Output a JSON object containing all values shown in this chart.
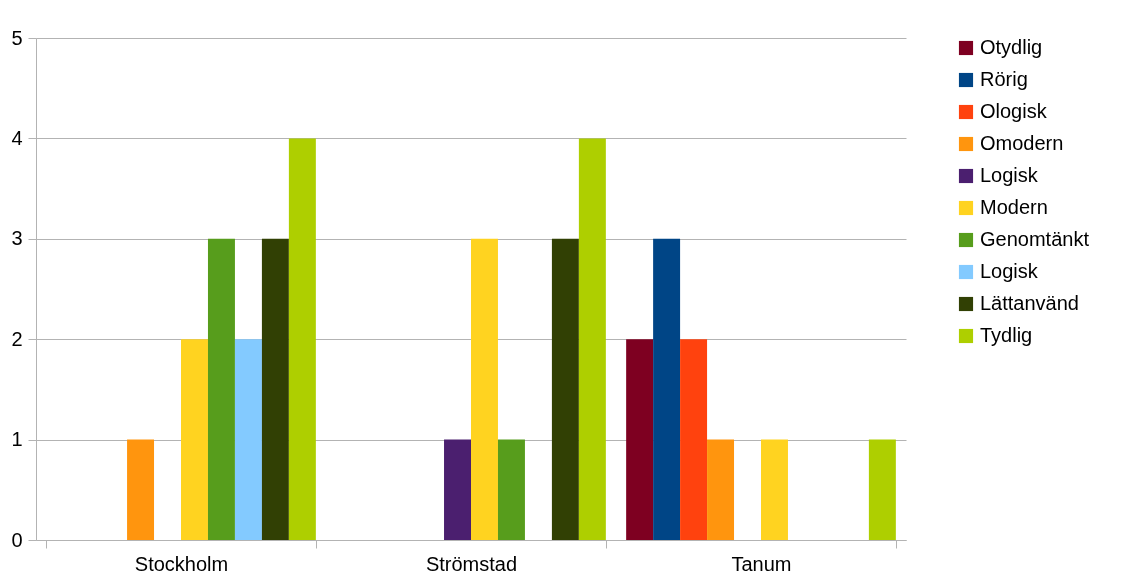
{
  "chart_data": {
    "type": "bar",
    "categories": [
      "Stockholm",
      "Strömstad",
      "Tanum"
    ],
    "series": [
      {
        "name": "Otydlig",
        "color": "#7e0021",
        "values": [
          0,
          0,
          2
        ]
      },
      {
        "name": "Rörig",
        "color": "#004586",
        "values": [
          0,
          0,
          3
        ]
      },
      {
        "name": "Ologisk",
        "color": "#ff420e",
        "values": [
          0,
          0,
          2
        ]
      },
      {
        "name": "Omodern",
        "color": "#ff950e",
        "values": [
          1,
          0,
          1
        ]
      },
      {
        "name": "Logisk",
        "color": "#4b1f6f",
        "values": [
          0,
          1,
          0
        ]
      },
      {
        "name": "Modern",
        "color": "#ffd320",
        "values": [
          2,
          3,
          1
        ]
      },
      {
        "name": "Genomtänkt",
        "color": "#579d1c",
        "values": [
          3,
          1,
          0
        ]
      },
      {
        "name": "Logisk",
        "color": "#83caff",
        "values": [
          2,
          0,
          0
        ]
      },
      {
        "name": "Lättanvänd",
        "color": "#314004",
        "values": [
          3,
          3,
          0
        ]
      },
      {
        "name": "Tydlig",
        "color": "#aecf00",
        "values": [
          4,
          4,
          1
        ]
      }
    ],
    "ylim": [
      0,
      5
    ],
    "yticks": [
      0,
      1,
      2,
      3,
      4,
      5
    ],
    "grid": "y",
    "legend": "right"
  }
}
